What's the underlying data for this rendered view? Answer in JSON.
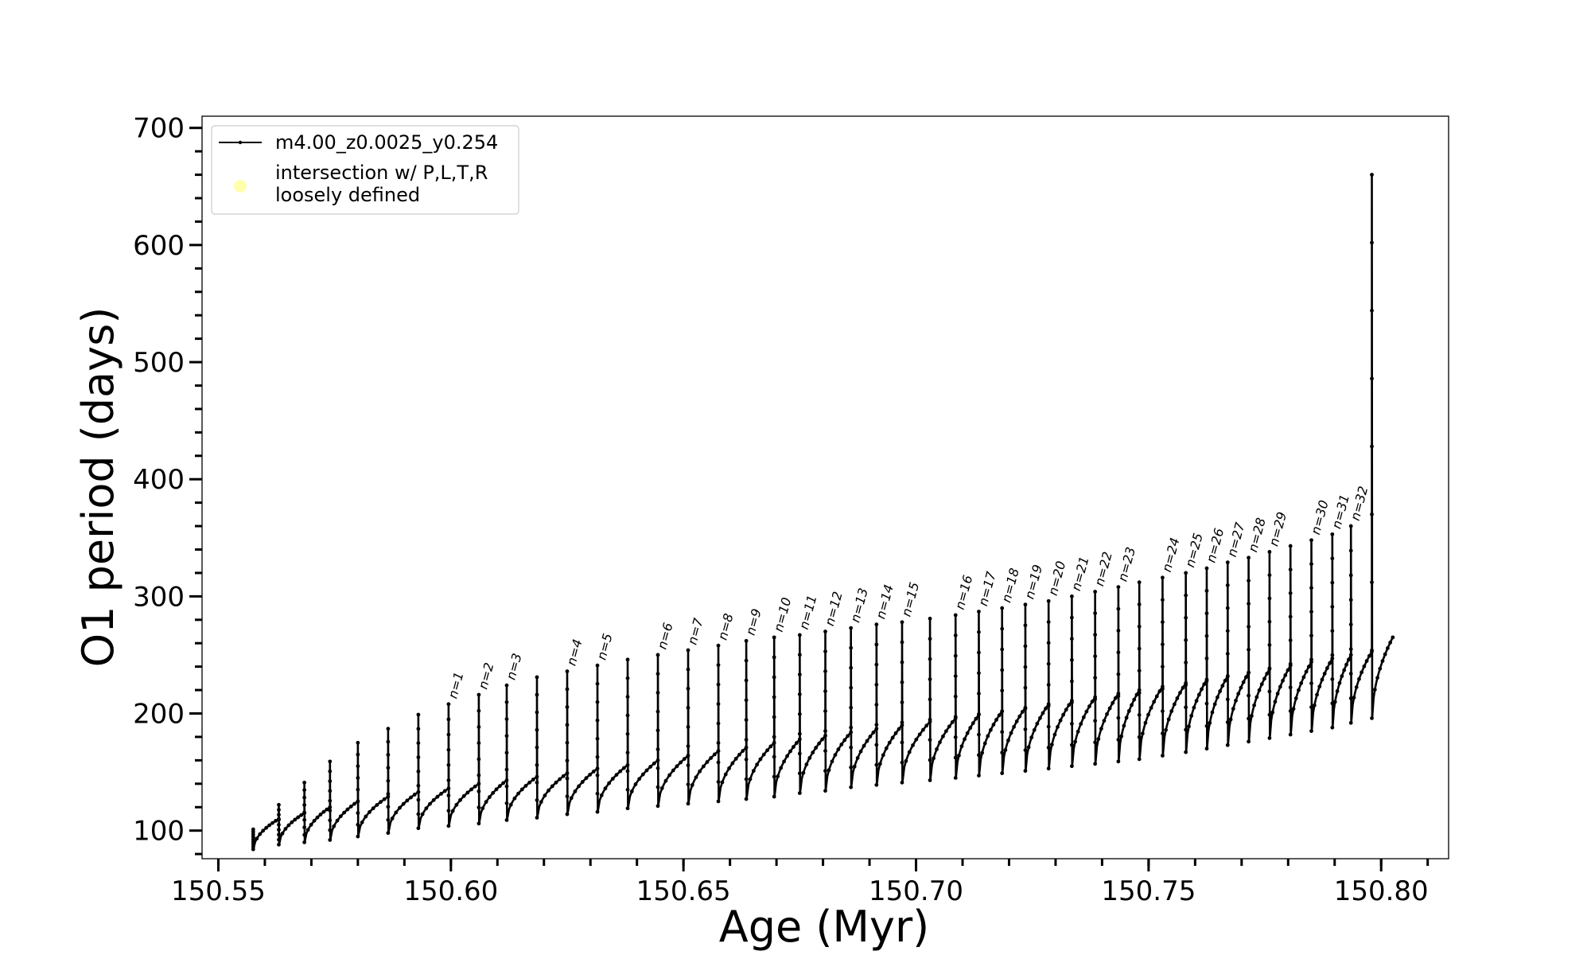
{
  "chart_data": {
    "type": "line",
    "xlabel": "Age (Myr)",
    "ylabel": "O1 period (days)",
    "xlim": [
      150.5465,
      150.8145
    ],
    "ylim": [
      76,
      710
    ],
    "xticks": [
      "150.55",
      "150.60",
      "150.65",
      "150.70",
      "150.75",
      "150.80"
    ],
    "xtick_values": [
      150.55,
      150.6,
      150.65,
      150.7,
      150.75,
      150.8
    ],
    "yticks": [
      "100",
      "200",
      "300",
      "400",
      "500",
      "600",
      "700"
    ],
    "ytick_values": [
      100,
      200,
      300,
      400,
      500,
      600,
      700
    ],
    "grid": false,
    "legend_placement": "top-left",
    "legend": [
      {
        "label": "m4.00_z0.0025_y0.254",
        "marker": "line-with-dots",
        "color": "#000000"
      },
      {
        "label_line1": "intersection w/ P,L,T,R",
        "label_line2": "loosely defined",
        "marker": "circle",
        "color": "#ffff99"
      }
    ],
    "series": [
      {
        "name": "m4.00_z0.0025_y0.254",
        "color": "#000000",
        "start": {
          "x": 150.5575,
          "y": 100
        },
        "end": {
          "x": 150.8025,
          "y": 265
        },
        "pulses": [
          {
            "x": 150.5575,
            "peak": 101,
            "trough": 84,
            "base": 86,
            "label": ""
          },
          {
            "x": 150.563,
            "peak": 122,
            "trough": 88,
            "base": 110,
            "label": ""
          },
          {
            "x": 150.5685,
            "peak": 141,
            "trough": 90,
            "base": 115,
            "label": ""
          },
          {
            "x": 150.574,
            "peak": 159,
            "trough": 92,
            "base": 120,
            "label": ""
          },
          {
            "x": 150.58,
            "peak": 175,
            "trough": 95,
            "base": 125,
            "label": ""
          },
          {
            "x": 150.5865,
            "peak": 187,
            "trough": 98,
            "base": 129,
            "label": ""
          },
          {
            "x": 150.593,
            "peak": 199,
            "trough": 102,
            "base": 133,
            "label": ""
          },
          {
            "x": 150.5995,
            "peak": 208,
            "trough": 104,
            "base": 136,
            "label": "n=1"
          },
          {
            "x": 150.606,
            "peak": 216,
            "trough": 106,
            "base": 140,
            "label": "n=2"
          },
          {
            "x": 150.612,
            "peak": 224,
            "trough": 109,
            "base": 143,
            "label": "n=3"
          },
          {
            "x": 150.6185,
            "peak": 231,
            "trough": 111,
            "base": 146,
            "label": ""
          },
          {
            "x": 150.625,
            "peak": 236,
            "trough": 114,
            "base": 149,
            "label": "n=4"
          },
          {
            "x": 150.6315,
            "peak": 241,
            "trough": 116,
            "base": 153,
            "label": "n=5"
          },
          {
            "x": 150.638,
            "peak": 246,
            "trough": 119,
            "base": 156,
            "label": ""
          },
          {
            "x": 150.6445,
            "peak": 250,
            "trough": 121,
            "base": 160,
            "label": "n=6"
          },
          {
            "x": 150.651,
            "peak": 254,
            "trough": 123,
            "base": 164,
            "label": "n=7"
          },
          {
            "x": 150.6575,
            "peak": 258,
            "trough": 125,
            "base": 168,
            "label": "n=8"
          },
          {
            "x": 150.6635,
            "peak": 262,
            "trough": 127,
            "base": 171,
            "label": "n=9"
          },
          {
            "x": 150.6695,
            "peak": 265,
            "trough": 129,
            "base": 175,
            "label": "n=10"
          },
          {
            "x": 150.675,
            "peak": 267,
            "trough": 132,
            "base": 178,
            "label": "n=11"
          },
          {
            "x": 150.6805,
            "peak": 270,
            "trough": 134,
            "base": 181,
            "label": "n=12"
          },
          {
            "x": 150.686,
            "peak": 273,
            "trough": 137,
            "base": 184,
            "label": "n=13"
          },
          {
            "x": 150.6915,
            "peak": 276,
            "trough": 139,
            "base": 187,
            "label": "n=14"
          },
          {
            "x": 150.697,
            "peak": 278,
            "trough": 141,
            "base": 190,
            "label": "n=15"
          },
          {
            "x": 150.703,
            "peak": 281,
            "trough": 143,
            "base": 193,
            "label": ""
          },
          {
            "x": 150.7085,
            "peak": 284,
            "trough": 145,
            "base": 196,
            "label": "n=16"
          },
          {
            "x": 150.7135,
            "peak": 287,
            "trough": 147,
            "base": 199,
            "label": "n=17"
          },
          {
            "x": 150.7185,
            "peak": 290,
            "trough": 149,
            "base": 202,
            "label": "n=18"
          },
          {
            "x": 150.7235,
            "peak": 293,
            "trough": 151,
            "base": 205,
            "label": "n=19"
          },
          {
            "x": 150.7285,
            "peak": 296,
            "trough": 153,
            "base": 208,
            "label": "n=20"
          },
          {
            "x": 150.7335,
            "peak": 300,
            "trough": 155,
            "base": 211,
            "label": "n=21"
          },
          {
            "x": 150.7385,
            "peak": 304,
            "trough": 157,
            "base": 214,
            "label": "n=22"
          },
          {
            "x": 150.7435,
            "peak": 308,
            "trough": 159,
            "base": 217,
            "label": "n=23"
          },
          {
            "x": 150.748,
            "peak": 312,
            "trough": 161,
            "base": 220,
            "label": ""
          },
          {
            "x": 150.753,
            "peak": 316,
            "trough": 164,
            "base": 223,
            "label": "n=24"
          },
          {
            "x": 150.758,
            "peak": 320,
            "trough": 167,
            "base": 226,
            "label": "n=25"
          },
          {
            "x": 150.7625,
            "peak": 324,
            "trough": 170,
            "base": 229,
            "label": "n=26"
          },
          {
            "x": 150.767,
            "peak": 329,
            "trough": 173,
            "base": 232,
            "label": "n=27"
          },
          {
            "x": 150.7715,
            "peak": 333,
            "trough": 176,
            "base": 235,
            "label": "n=28"
          },
          {
            "x": 150.776,
            "peak": 338,
            "trough": 179,
            "base": 238,
            "label": "n=29"
          },
          {
            "x": 150.7805,
            "peak": 343,
            "trough": 182,
            "base": 241,
            "label": ""
          },
          {
            "x": 150.785,
            "peak": 348,
            "trough": 185,
            "base": 244,
            "label": "n=30"
          },
          {
            "x": 150.7895,
            "peak": 353,
            "trough": 188,
            "base": 247,
            "label": "n=31"
          },
          {
            "x": 150.7935,
            "peak": 360,
            "trough": 192,
            "base": 250,
            "label": "n=32"
          },
          {
            "x": 150.798,
            "peak": 660,
            "trough": 196,
            "base": 253,
            "label": ""
          }
        ]
      }
    ]
  }
}
